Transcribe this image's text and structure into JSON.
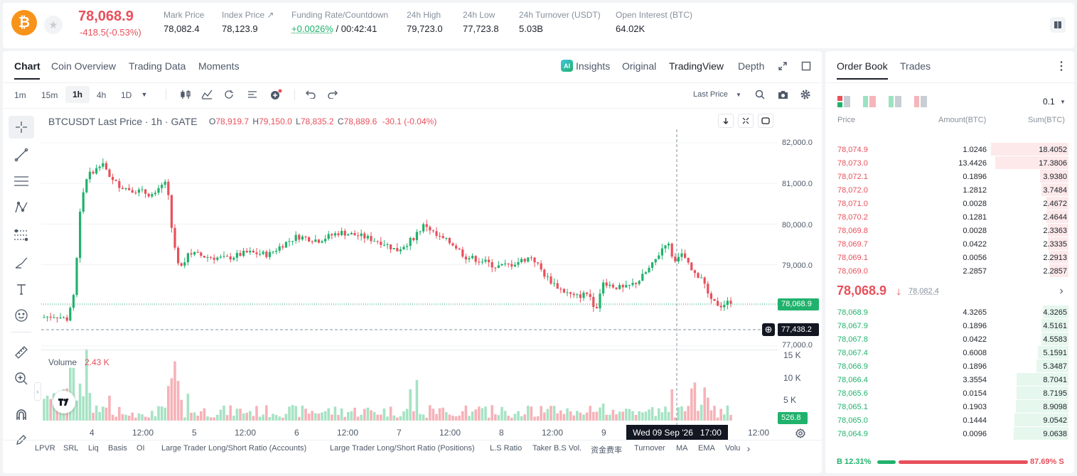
{
  "header": {
    "coin_symbol": "₿",
    "price": "78,068.9",
    "change": "-418.5(-0.53%)",
    "stats": [
      {
        "label": "Mark Price",
        "value": "78,082.4"
      },
      {
        "label": "Index Price ↗",
        "value": "78,123.9"
      },
      {
        "label": "Funding Rate/Countdown",
        "value_up": "+0.0026%",
        "value": " / 00:42:41"
      },
      {
        "label": "24h High",
        "value": "79,723.0"
      },
      {
        "label": "24h Low",
        "value": "77,723.8"
      },
      {
        "label": "24h Turnover (USDT)",
        "value": "5.03B"
      },
      {
        "label": "Open Interest (BTC)",
        "value": "64.02K"
      }
    ]
  },
  "chart_panel": {
    "tabs": [
      "Chart",
      "Coin Overview",
      "Trading Data",
      "Moments"
    ],
    "view_tabs": [
      "Insights",
      "Original",
      "TradingView",
      "Depth"
    ],
    "timeframes": [
      "1m",
      "15m",
      "1h",
      "4h",
      "1D"
    ],
    "price_type": "Last Price",
    "legend": {
      "symbol": "BTCUSDT Last Price · 1h · GATE",
      "o_label": "O",
      "o": "78,919.7",
      "h_label": "H",
      "h": "79,150.0",
      "l_label": "L",
      "l": "78,835.2",
      "c_label": "C",
      "c": "78,889.6",
      "change": "-30.1 (-0.04%)"
    },
    "price_axis": [
      "82,000.0",
      "81,000.0",
      "80,000.0",
      "79,000.0",
      "77,000.0"
    ],
    "last_price_tag": "78,068.9",
    "crosshair_price_tag": "77,438.2",
    "volume_label": "Volume",
    "volume_value": "2.43 K",
    "volume_axis": [
      "15 K",
      "10 K",
      "5 K"
    ],
    "volume_tag": "526.8",
    "time_axis": [
      "4",
      "12:00",
      "5",
      "12:00",
      "6",
      "12:00",
      "7",
      "12:00",
      "8",
      "12:00",
      "9",
      "12:00"
    ],
    "crosshair_time": "Wed 09 Sep '26   17:00",
    "indicators": [
      "LPVR",
      "SRL",
      "Liq",
      "Basis",
      "OI",
      "Large Trader Long/Short Ratio (Accounts)",
      "Large Trader Long/Short Ratio (Positions)",
      "L.S Ratio",
      "Taker B.S Vol.",
      "资金费率",
      "Turnover",
      "MA",
      "EMA",
      "Volu"
    ]
  },
  "orderbook": {
    "tabs": [
      "Order Book",
      "Trades"
    ],
    "precision": "0.1",
    "columns": [
      "Price",
      "Amount(BTC)",
      "Sum(BTC)"
    ],
    "asks": [
      {
        "price": "78,074.9",
        "amount": "1.0246",
        "sum": "18.4052",
        "depth": 0.88
      },
      {
        "price": "78,073.0",
        "amount": "13.4426",
        "sum": "17.3806",
        "depth": 0.83
      },
      {
        "price": "78,072.1",
        "amount": "0.1896",
        "sum": "3.9380",
        "depth": 0.32
      },
      {
        "price": "78,072.0",
        "amount": "1.2812",
        "sum": "3.7484",
        "depth": 0.31
      },
      {
        "price": "78,071.0",
        "amount": "0.0028",
        "sum": "2.4672",
        "depth": 0.25
      },
      {
        "price": "78,070.2",
        "amount": "0.1281",
        "sum": "2.4644",
        "depth": 0.25
      },
      {
        "price": "78,069.8",
        "amount": "0.0028",
        "sum": "2.3363",
        "depth": 0.23
      },
      {
        "price": "78,069.7",
        "amount": "0.0422",
        "sum": "2.3335",
        "depth": 0.23
      },
      {
        "price": "78,069.1",
        "amount": "0.0056",
        "sum": "2.2913",
        "depth": 0.22
      },
      {
        "price": "78,069.0",
        "amount": "2.2857",
        "sum": "2.2857",
        "depth": 0.22
      }
    ],
    "mid_price": "78,068.9",
    "mid_arrow": "🡓",
    "mid_mark": "78,082.4",
    "bids": [
      {
        "price": "78,068.9",
        "amount": "4.3265",
        "sum": "4.3265",
        "depth": 0.29
      },
      {
        "price": "78,067.9",
        "amount": "0.1896",
        "sum": "4.5161",
        "depth": 0.31
      },
      {
        "price": "78,067.8",
        "amount": "0.0422",
        "sum": "4.5583",
        "depth": 0.31
      },
      {
        "price": "78,067.4",
        "amount": "0.6008",
        "sum": "5.1591",
        "depth": 0.35
      },
      {
        "price": "78,066.9",
        "amount": "0.1896",
        "sum": "5.3487",
        "depth": 0.36
      },
      {
        "price": "78,066.4",
        "amount": "3.3554",
        "sum": "8.7041",
        "depth": 0.59
      },
      {
        "price": "78,065.6",
        "amount": "0.0154",
        "sum": "8.7195",
        "depth": 0.59
      },
      {
        "price": "78,065.1",
        "amount": "0.1903",
        "sum": "8.9098",
        "depth": 0.6
      },
      {
        "price": "78,065.0",
        "amount": "0.1444",
        "sum": "9.0542",
        "depth": 0.61
      },
      {
        "price": "78,064.9",
        "amount": "0.0096",
        "sum": "9.0638",
        "depth": 0.62
      }
    ],
    "buy_label": "B 12.31%",
    "sell_label": "87.69% S",
    "buy_ratio": 0.1231
  },
  "colors": {
    "up": "#20b26c",
    "down": "#e8505b",
    "brand": "#f7931a"
  }
}
